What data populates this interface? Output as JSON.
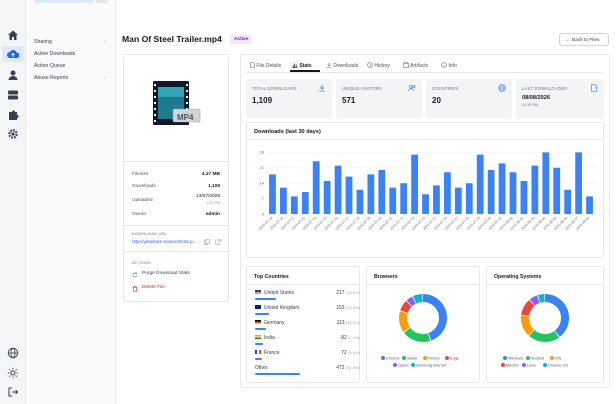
{
  "sidebar": {
    "items": [
      {
        "label": "Sharing",
        "chevron": true
      },
      {
        "label": "Active Downloads",
        "chevron": false
      },
      {
        "label": "Action Queue",
        "chevron": false
      },
      {
        "label": "Abuse Reports",
        "chevron": true
      }
    ]
  },
  "header": {
    "title": "Man Of Steel Trailer.mp4",
    "badge": "Active",
    "back_label": "Back to Files"
  },
  "file": {
    "type_label": "MP4",
    "meta": [
      {
        "key": "Filesize",
        "value": "4.27 MB"
      },
      {
        "key": "Downloads",
        "value": "1,109"
      },
      {
        "key": "Uploaded",
        "value": "13/07/2026",
        "sub": "2:50 PM"
      },
      {
        "key": "Owner",
        "value": "admin"
      }
    ],
    "download_url_label": "DOWNLOAD URL",
    "download_url": "http://yetishare-screenshots-p...",
    "actions_label": "ACTIONS",
    "purge_label": "Purge Download Stats",
    "delete_label": "Delete File"
  },
  "tabs": [
    {
      "label": "File Details",
      "icon": "file-icon"
    },
    {
      "label": "Stats",
      "icon": "chart-icon",
      "active": true
    },
    {
      "label": "Downloads",
      "icon": "download-icon"
    },
    {
      "label": "History",
      "icon": "clock-icon"
    },
    {
      "label": "Artifacts",
      "icon": "box-icon"
    },
    {
      "label": "Info",
      "icon": "info-icon"
    }
  ],
  "kpis": [
    {
      "label": "TOTAL DOWNLOADS",
      "value": "1,109",
      "icon": "download-icon"
    },
    {
      "label": "UNIQUE VISITORS",
      "value": "571",
      "icon": "users-icon"
    },
    {
      "label": "COUNTRIES",
      "value": "20",
      "icon": "globe-icon"
    },
    {
      "label": "LAST DOWNLOADED",
      "value": "08/08/2026",
      "sub": "11:33 PM",
      "icon": "file-icon"
    }
  ],
  "colors": {
    "accent": "#3b82f6",
    "badge_bg": "#ede9fe",
    "badge_fg": "#6d28d9",
    "danger": "#dc2626",
    "sidebar_active": "#2563eb"
  },
  "chart_data": [
    {
      "type": "bar",
      "title": "Downloads (last 30 days)",
      "ylim": [
        0,
        30
      ],
      "yticks": [
        0,
        7,
        14,
        21,
        28
      ],
      "categories": [
        "2026-07-10",
        "2026-07-11",
        "2026-07-12",
        "2026-07-13",
        "2026-07-14",
        "2026-07-15",
        "2026-07-16",
        "2026-07-17",
        "2026-07-18",
        "2026-07-19",
        "2026-07-20",
        "2026-07-21",
        "2026-07-22",
        "2026-07-23",
        "2026-07-24",
        "2026-07-25",
        "2026-07-26",
        "2026-07-27",
        "2026-07-28",
        "2026-07-29",
        "2026-07-30",
        "2026-07-31",
        "2026-08-01",
        "2026-08-02",
        "2026-08-03",
        "2026-08-04",
        "2026-08-05",
        "2026-08-06",
        "2026-08-07",
        "2026-08-08"
      ],
      "values": [
        18,
        12,
        8,
        10,
        24,
        15,
        22,
        17,
        11,
        18,
        20,
        12,
        14,
        27,
        9,
        13,
        19,
        12,
        14,
        27,
        20,
        23,
        19,
        15,
        22,
        28,
        21,
        11,
        28,
        8
      ],
      "color": "#3b82f6"
    },
    {
      "type": "table",
      "title": "Top Countries",
      "rows": [
        {
          "name": "United States",
          "count": 217,
          "pct": "(19.6%)",
          "share": 0.196
        },
        {
          "name": "United Kingdom",
          "count": 153,
          "pct": "(13.8%)",
          "share": 0.138
        },
        {
          "name": "Germany",
          "count": 113,
          "pct": "(10.2%)",
          "share": 0.102
        },
        {
          "name": "India",
          "count": 82,
          "pct": "(7.4%)",
          "share": 0.074
        },
        {
          "name": "France",
          "count": 72,
          "pct": "(6.5%)",
          "share": 0.065
        },
        {
          "name": "Other",
          "count": 472,
          "pct": "(42.5%)",
          "share": 0.425
        }
      ]
    },
    {
      "type": "pie",
      "title": "Browsers",
      "slices": [
        {
          "name": "Chrome",
          "value": 45,
          "color": "#3b82f6"
        },
        {
          "name": "Safari",
          "value": 20,
          "color": "#22c55e"
        },
        {
          "name": "Firefox",
          "value": 15,
          "color": "#f59e0b"
        },
        {
          "name": "Edge",
          "value": 8,
          "color": "#ef4444"
        },
        {
          "name": "Opera",
          "value": 5,
          "color": "#8b5cf6"
        },
        {
          "name": "Samsung Internet",
          "value": 7,
          "color": "#06b6d4"
        }
      ]
    },
    {
      "type": "pie",
      "title": "Operating Systems",
      "slices": [
        {
          "name": "Windows",
          "value": 40,
          "color": "#3b82f6"
        },
        {
          "name": "Android",
          "value": 22,
          "color": "#22c55e"
        },
        {
          "name": "iOS",
          "value": 15,
          "color": "#f59e0b"
        },
        {
          "name": "MacOS",
          "value": 12,
          "color": "#ef4444"
        },
        {
          "name": "Linux",
          "value": 6,
          "color": "#8b5cf6"
        },
        {
          "name": "Chrome OS",
          "value": 5,
          "color": "#06b6d4"
        }
      ]
    }
  ]
}
